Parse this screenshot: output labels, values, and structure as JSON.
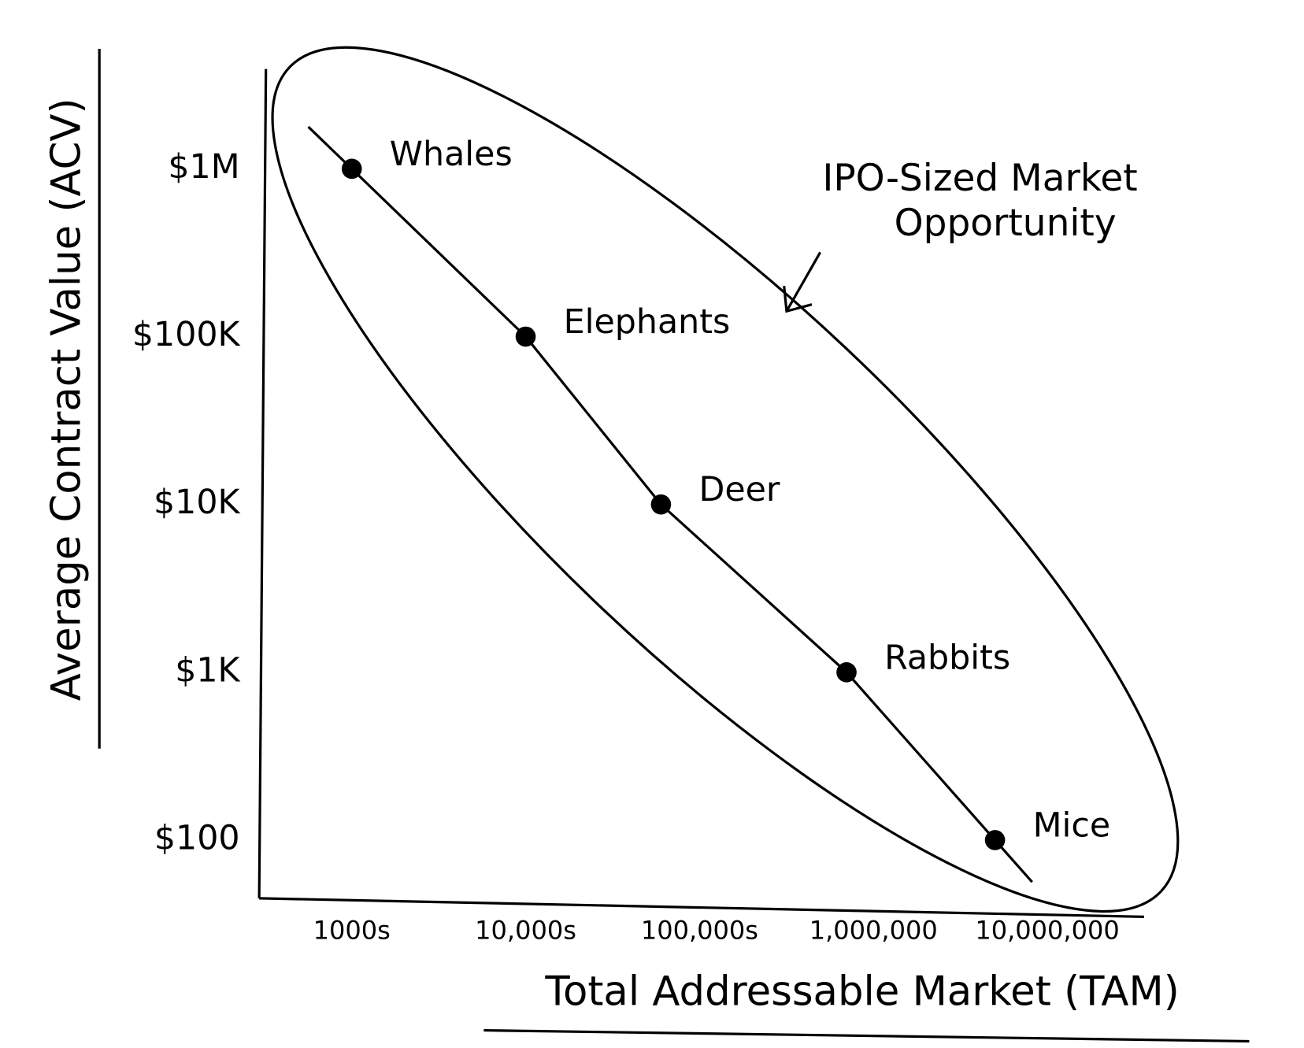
{
  "chart_data": {
    "type": "scatter",
    "x_label": "Total Addressable Market (TAM)",
    "y_label": "Average Contract Value (ACV)",
    "annotation": [
      "IPO-Sized Market",
      "Opportunity"
    ],
    "log_x": true,
    "log_y": true,
    "color": "#000000",
    "labels": [
      "Whales",
      "Elephants",
      "Deer",
      "Rabbits",
      "Mice"
    ],
    "x": [
      1000,
      10000,
      60000,
      700000,
      5000000
    ],
    "values": [
      1000000,
      100000,
      10000,
      1000,
      100
    ],
    "xlim": [
      300,
      36000000
    ],
    "ylim": [
      45,
      3800000
    ],
    "xticks": [
      {
        "value": 1000,
        "label": "1000s"
      },
      {
        "value": 10000,
        "label": "10,000s"
      },
      {
        "value": 100000,
        "label": "100,000s"
      },
      {
        "value": 1000000,
        "label": "1,000,000"
      },
      {
        "value": 10000000,
        "label": "10,000,000"
      }
    ],
    "yticks": [
      {
        "value": 1000000,
        "label": "$1M"
      },
      {
        "value": 100000,
        "label": "$100K"
      },
      {
        "value": 10000,
        "label": "$10K"
      },
      {
        "value": 1000,
        "label": "$1K"
      },
      {
        "value": 100,
        "label": "$100"
      }
    ]
  }
}
